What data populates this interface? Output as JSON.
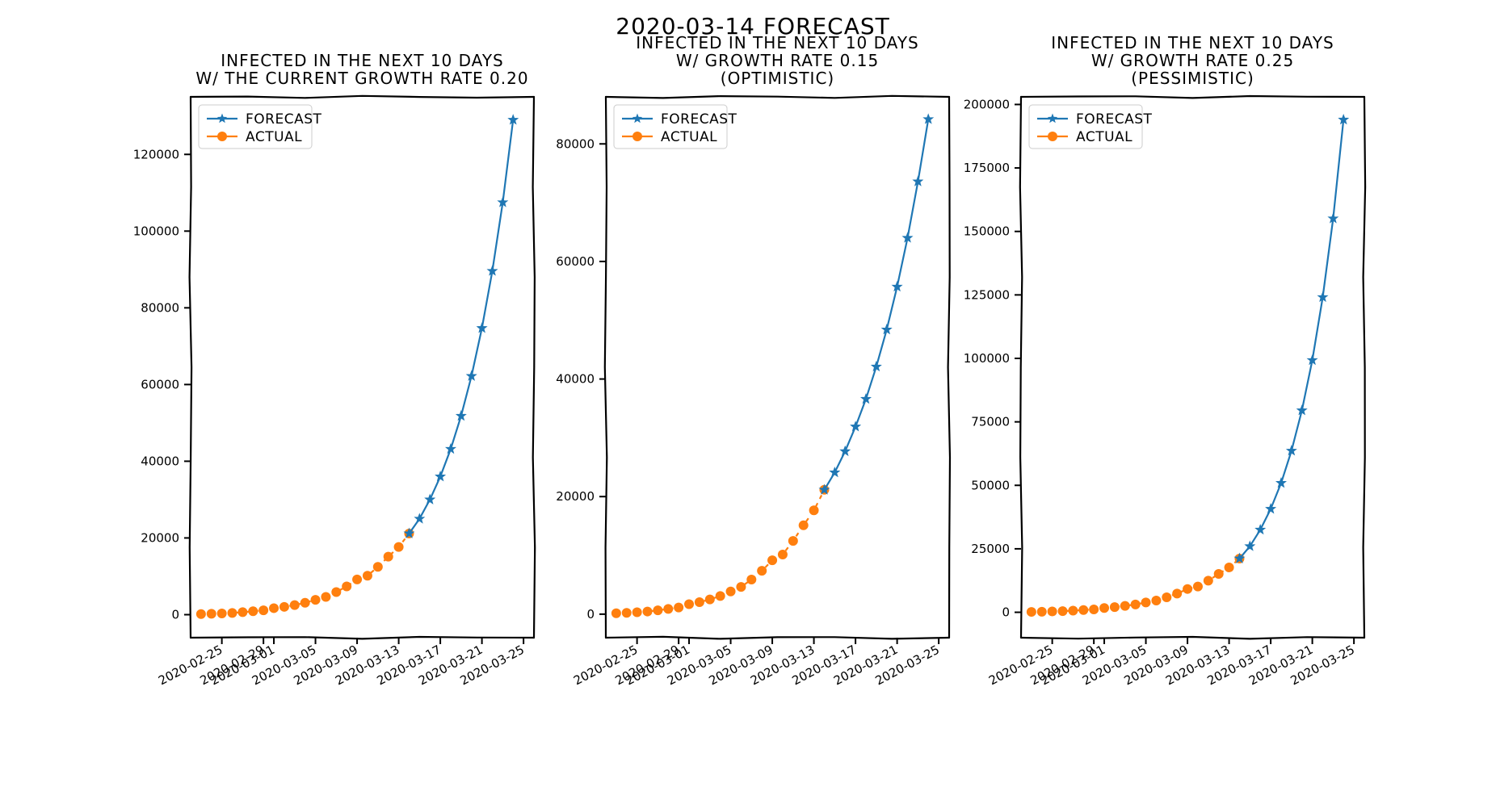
{
  "suptitle": "2020-03-14 FORECAST",
  "colors": {
    "forecast": "#1f77b4",
    "actual": "#ff7f0e",
    "axis": "#000000"
  },
  "legend": {
    "placement": "top-left"
  },
  "chart_data": [
    {
      "type": "line",
      "title": [
        "INFECTED IN THE NEXT 10 DAYS",
        "W/ THE CURRENT GROWTH RATE 0.20"
      ],
      "xlabel": "",
      "ylabel": "",
      "ylim": [
        -6000,
        135000
      ],
      "xlim": [
        "2020-02-22",
        "2020-03-26"
      ],
      "yticks": [
        0,
        20000,
        40000,
        60000,
        80000,
        100000,
        120000
      ],
      "xticks": [
        "2020-02-25",
        "2020-02-29",
        "2020-03-01",
        "2020-03-05",
        "2020-03-09",
        "2020-03-13",
        "2020-03-17",
        "2020-03-21",
        "2020-03-25"
      ],
      "grid": false,
      "legend_placement": "top-left",
      "series": [
        {
          "name": "FORECAST",
          "marker": "star",
          "x": [
            "2020-03-14",
            "2020-03-15",
            "2020-03-16",
            "2020-03-17",
            "2020-03-18",
            "2020-03-19",
            "2020-03-20",
            "2020-03-21",
            "2020-03-22",
            "2020-03-23",
            "2020-03-24",
            "2020-03-25"
          ],
          "values": [
            21157,
            25000,
            30000,
            36000,
            43200,
            51800,
            62200,
            74700,
            89600,
            107500,
            129000,
            null
          ]
        },
        {
          "name": "ACTUAL",
          "marker": "circle",
          "x": [
            "2020-02-23",
            "2020-02-24",
            "2020-02-25",
            "2020-02-26",
            "2020-02-27",
            "2020-02-28",
            "2020-02-29",
            "2020-03-01",
            "2020-03-02",
            "2020-03-03",
            "2020-03-04",
            "2020-03-05",
            "2020-03-06",
            "2020-03-07",
            "2020-03-08",
            "2020-03-09",
            "2020-03-10",
            "2020-03-11",
            "2020-03-12",
            "2020-03-13",
            "2020-03-14"
          ],
          "values": [
            152,
            229,
            322,
            453,
            655,
            888,
            1128,
            1694,
            2036,
            2502,
            3089,
            3858,
            4636,
            5883,
            7375,
            9172,
            10149,
            12462,
            15113,
            17660,
            21157
          ]
        }
      ]
    },
    {
      "type": "line",
      "title": [
        "INFECTED IN THE NEXT 10 DAYS",
        "W/ GROWTH RATE 0.15",
        "(OPTIMISTIC)"
      ],
      "xlabel": "",
      "ylabel": "",
      "ylim": [
        -4000,
        88000
      ],
      "xlim": [
        "2020-02-22",
        "2020-03-26"
      ],
      "yticks": [
        0,
        20000,
        40000,
        60000,
        80000
      ],
      "xticks": [
        "2020-02-25",
        "2020-02-29",
        "2020-03-01",
        "2020-03-05",
        "2020-03-09",
        "2020-03-13",
        "2020-03-17",
        "2020-03-21",
        "2020-03-25"
      ],
      "grid": false,
      "legend_placement": "top-left",
      "series": [
        {
          "name": "FORECAST",
          "marker": "star",
          "x": [
            "2020-03-14",
            "2020-03-15",
            "2020-03-16",
            "2020-03-17",
            "2020-03-18",
            "2020-03-19",
            "2020-03-20",
            "2020-03-21",
            "2020-03-22",
            "2020-03-23",
            "2020-03-24"
          ],
          "values": [
            21157,
            24100,
            27700,
            31900,
            36600,
            42100,
            48400,
            55700,
            64000,
            73600,
            84200
          ]
        },
        {
          "name": "ACTUAL",
          "marker": "circle",
          "x": [
            "2020-02-23",
            "2020-02-24",
            "2020-02-25",
            "2020-02-26",
            "2020-02-27",
            "2020-02-28",
            "2020-02-29",
            "2020-03-01",
            "2020-03-02",
            "2020-03-03",
            "2020-03-04",
            "2020-03-05",
            "2020-03-06",
            "2020-03-07",
            "2020-03-08",
            "2020-03-09",
            "2020-03-10",
            "2020-03-11",
            "2020-03-12",
            "2020-03-13",
            "2020-03-14"
          ],
          "values": [
            152,
            229,
            322,
            453,
            655,
            888,
            1128,
            1694,
            2036,
            2502,
            3089,
            3858,
            4636,
            5883,
            7375,
            9172,
            10149,
            12462,
            15113,
            17660,
            21157
          ]
        }
      ]
    },
    {
      "type": "line",
      "title": [
        "INFECTED IN THE NEXT 10 DAYS",
        "W/ GROWTH RATE 0.25",
        "(PESSIMISTIC)"
      ],
      "xlabel": "",
      "ylabel": "",
      "ylim": [
        -10000,
        203000
      ],
      "xlim": [
        "2020-02-22",
        "2020-03-26"
      ],
      "yticks": [
        0,
        25000,
        50000,
        75000,
        100000,
        125000,
        150000,
        175000,
        200000
      ],
      "xticks": [
        "2020-02-25",
        "2020-02-29",
        "2020-03-01",
        "2020-03-05",
        "2020-03-09",
        "2020-03-13",
        "2020-03-17",
        "2020-03-21",
        "2020-03-25"
      ],
      "grid": false,
      "legend_placement": "top-left",
      "series": [
        {
          "name": "FORECAST",
          "marker": "star",
          "x": [
            "2020-03-14",
            "2020-03-15",
            "2020-03-16",
            "2020-03-17",
            "2020-03-18",
            "2020-03-19",
            "2020-03-20",
            "2020-03-21",
            "2020-03-22",
            "2020-03-23",
            "2020-03-24"
          ],
          "values": [
            21157,
            26000,
            32500,
            40700,
            50900,
            63600,
            79500,
            99300,
            124100,
            155100,
            194000
          ]
        },
        {
          "name": "ACTUAL",
          "marker": "circle",
          "x": [
            "2020-02-23",
            "2020-02-24",
            "2020-02-25",
            "2020-02-26",
            "2020-02-27",
            "2020-02-28",
            "2020-02-29",
            "2020-03-01",
            "2020-03-02",
            "2020-03-03",
            "2020-03-04",
            "2020-03-05",
            "2020-03-06",
            "2020-03-07",
            "2020-03-08",
            "2020-03-09",
            "2020-03-10",
            "2020-03-11",
            "2020-03-12",
            "2020-03-13",
            "2020-03-14"
          ],
          "values": [
            152,
            229,
            322,
            453,
            655,
            888,
            1128,
            1694,
            2036,
            2502,
            3089,
            3858,
            4636,
            5883,
            7375,
            9172,
            10149,
            12462,
            15113,
            17660,
            21157
          ]
        }
      ]
    }
  ]
}
